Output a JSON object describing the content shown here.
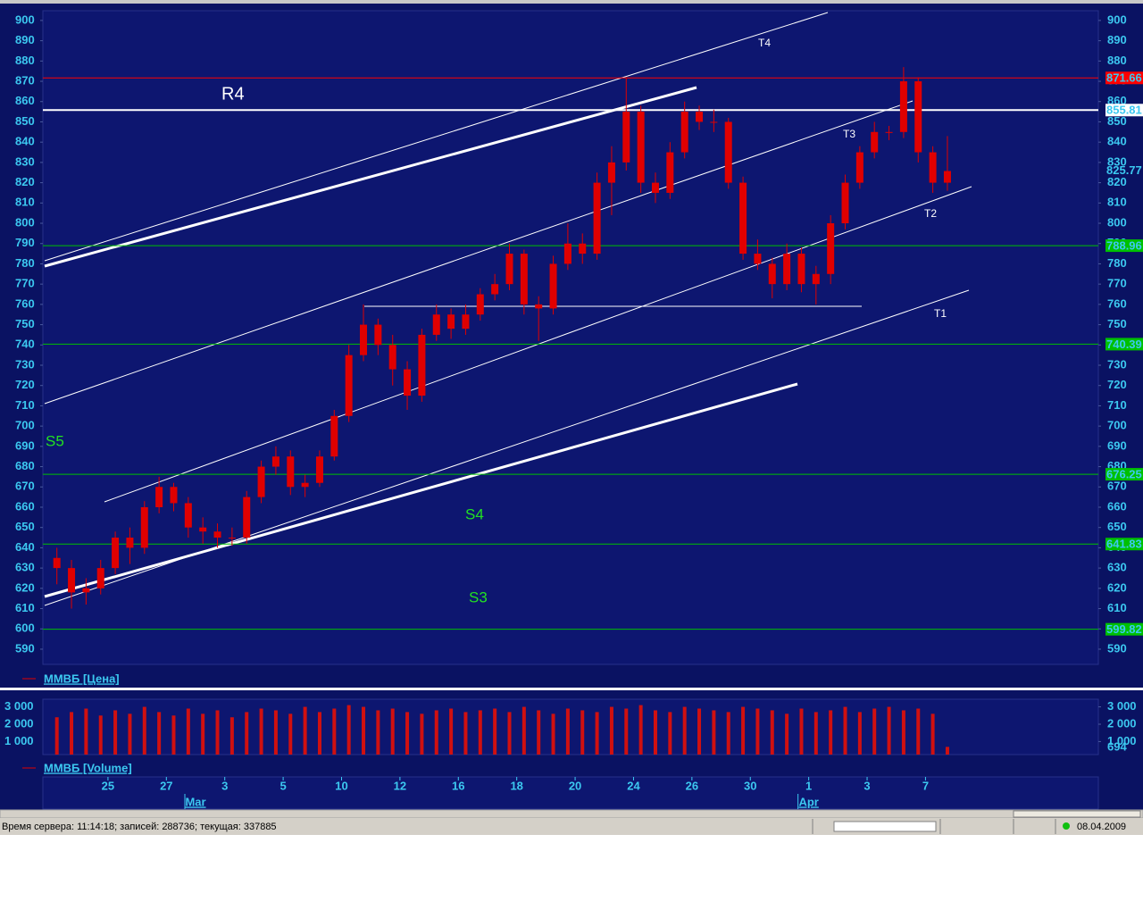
{
  "chart_data": [
    {
      "type": "candlestick",
      "name": "ММВБ [Цена]",
      "color": "#e00000",
      "x": [
        0.25,
        0.75,
        1.25,
        1.75,
        2.25,
        2.75,
        3.25,
        3.75,
        4.25,
        4.75,
        5.25,
        5.75,
        6.25,
        6.75,
        7.25,
        7.75,
        8.25,
        8.75,
        9.25,
        9.75,
        10.25,
        10.75,
        11.25,
        11.75,
        12.25,
        12.75,
        13.25,
        13.75,
        14.25,
        14.75,
        15.25,
        15.75,
        16.25,
        16.75,
        17.25,
        17.75,
        18.25,
        18.75,
        19.25,
        19.75,
        20.25,
        20.75,
        21.25,
        21.75,
        22.25,
        22.75,
        23.25,
        23.75,
        24.25,
        24.75,
        25.25,
        25.75,
        26.25,
        26.75,
        27.25,
        27.75,
        28.25,
        28.75,
        29.25,
        29.75,
        30.25,
        30.75
      ],
      "open": [
        635,
        630,
        618,
        620,
        630,
        645,
        640,
        660,
        670,
        662,
        650,
        648,
        645,
        645,
        665,
        680,
        685,
        670,
        672,
        685,
        705,
        735,
        750,
        740,
        728,
        715,
        745,
        755,
        748,
        755,
        765,
        770,
        785,
        760,
        758,
        780,
        790,
        785,
        820,
        830,
        855,
        820,
        815,
        835,
        855,
        850,
        850,
        820,
        785,
        780,
        770,
        785,
        770,
        775,
        800,
        820,
        835,
        845,
        845,
        870,
        835,
        820
      ],
      "high": [
        640,
        634,
        625,
        634,
        648,
        650,
        663,
        675,
        672,
        665,
        655,
        652,
        650,
        668,
        683,
        690,
        688,
        676,
        688,
        708,
        740,
        760,
        753,
        745,
        732,
        748,
        760,
        758,
        760,
        768,
        775,
        790,
        787,
        764,
        784,
        800,
        795,
        825,
        838,
        872,
        858,
        825,
        840,
        860,
        858,
        856,
        852,
        823,
        792,
        783,
        790,
        788,
        779,
        804,
        824,
        838,
        850,
        848,
        877,
        872,
        838,
        843
      ],
      "low": [
        622,
        610,
        612,
        617,
        627,
        632,
        637,
        657,
        658,
        645,
        642,
        640,
        641,
        642,
        662,
        676,
        666,
        665,
        670,
        683,
        702,
        732,
        735,
        720,
        708,
        712,
        742,
        743,
        745,
        752,
        762,
        767,
        755,
        742,
        755,
        777,
        780,
        782,
        804,
        826,
        815,
        810,
        812,
        832,
        846,
        845,
        817,
        782,
        777,
        763,
        767,
        766,
        760,
        770,
        797,
        817,
        832,
        841,
        842,
        830,
        815,
        816
      ],
      "close": [
        630,
        618,
        620,
        630,
        645,
        640,
        660,
        670,
        662,
        650,
        648,
        645,
        645,
        665,
        680,
        685,
        670,
        672,
        685,
        705,
        735,
        750,
        740,
        728,
        715,
        745,
        755,
        748,
        755,
        765,
        770,
        785,
        760,
        758,
        780,
        790,
        785,
        820,
        830,
        855,
        820,
        815,
        835,
        855,
        850,
        850,
        820,
        785,
        780,
        770,
        785,
        770,
        775,
        800,
        820,
        835,
        845,
        845,
        870,
        835,
        820,
        825.77
      ],
      "xlim": [
        -0.23,
        35.92
      ],
      "ylim": [
        582.5,
        904.8
      ],
      "yticks": [
        590,
        600,
        610,
        620,
        630,
        640,
        650,
        660,
        670,
        680,
        690,
        700,
        710,
        720,
        730,
        740,
        750,
        760,
        770,
        780,
        790,
        800,
        810,
        820,
        830,
        840,
        850,
        860,
        870,
        880,
        890,
        900
      ],
      "xticks": [
        {
          "value": 2,
          "label": "25"
        },
        {
          "value": 4,
          "label": "27"
        },
        {
          "value": 6,
          "label": "3"
        },
        {
          "value": 8,
          "label": "5"
        },
        {
          "value": 10,
          "label": "10"
        },
        {
          "value": 12,
          "label": "12"
        },
        {
          "value": 14,
          "label": "16"
        },
        {
          "value": 16,
          "label": "18"
        },
        {
          "value": 18,
          "label": "20"
        },
        {
          "value": 20,
          "label": "24"
        },
        {
          "value": 22,
          "label": "26"
        },
        {
          "value": 24,
          "label": "30"
        },
        {
          "value": 26,
          "label": "1"
        },
        {
          "value": 28,
          "label": "3"
        },
        {
          "value": 30,
          "label": "7"
        }
      ],
      "month_ticks": [
        {
          "value": 5,
          "label": "Mar"
        },
        {
          "value": 26,
          "label": "Apr"
        }
      ],
      "levels": [
        {
          "value": 871.66,
          "color": "#ff0000"
        },
        {
          "value": 855.81,
          "color": "#ffffff"
        },
        {
          "value": 788.96,
          "color": "#00c000"
        },
        {
          "value": 740.39,
          "color": "#00c000"
        },
        {
          "value": 676.25,
          "color": "#00c000"
        },
        {
          "value": 641.83,
          "color": "#00c000"
        },
        {
          "value": 599.82,
          "color": "#00c000"
        }
      ],
      "annotations": [
        "R4",
        "S5",
        "S4",
        "S3",
        "T1",
        "T2",
        "T3",
        "T4"
      ]
    },
    {
      "type": "bar",
      "name": "ММВБ [Volume]",
      "color": "#d01010",
      "values": [
        2400,
        2700,
        2900,
        2500,
        2800,
        2600,
        3000,
        2700,
        2500,
        2900,
        2600,
        2800,
        2400,
        2700,
        2900,
        2800,
        2600,
        3000,
        2700,
        2900,
        3100,
        3000,
        2800,
        2900,
        2700,
        2600,
        2800,
        2900,
        2700,
        2800,
        2900,
        2700,
        3000,
        2800,
        2600,
        2900,
        2800,
        2700,
        3000,
        2900,
        3100,
        2800,
        2700,
        3000,
        2900,
        2800,
        2700,
        3000,
        2900,
        2800,
        2600,
        2900,
        2700,
        2800,
        3000,
        2700,
        2900,
        3000,
        2800,
        2900,
        2600,
        694
      ],
      "ylim": [
        250,
        3440
      ],
      "yticks": [
        {
          "value": 1000,
          "label": "1 000"
        },
        {
          "value": 2000,
          "label": "2 000"
        },
        {
          "value": 3000,
          "label": "3 000"
        }
      ]
    }
  ],
  "status_bar": {
    "server": "Время сервера: 11:14:18; записей: 288736; текущая: 337885",
    "date": "08.04.2009"
  }
}
